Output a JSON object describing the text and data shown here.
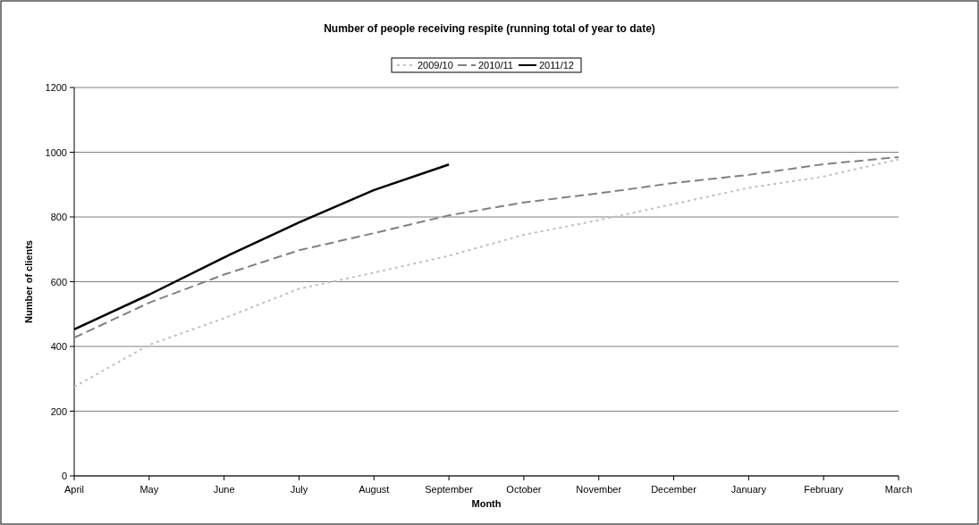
{
  "chart_data": {
    "type": "line",
    "title": "Number of people receiving respite (running total of year to date)",
    "xlabel": "Month",
    "ylabel": "Number of clients",
    "categories": [
      "April",
      "May",
      "June",
      "July",
      "August",
      "September",
      "October",
      "November",
      "December",
      "January",
      "February",
      "March"
    ],
    "ylim": [
      0,
      1200
    ],
    "yticks": [
      0,
      200,
      400,
      600,
      800,
      1000,
      1200
    ],
    "grid": "y",
    "legend": "top",
    "marker": "none",
    "series": [
      {
        "name": "2009/10",
        "color": "#c0c0c0",
        "line_style": "dotted",
        "values": [
          275,
          405,
          487,
          578,
          628,
          680,
          745,
          790,
          840,
          890,
          925,
          978
        ]
      },
      {
        "name": "2010/11",
        "color": "#808080",
        "line_style": "dashed",
        "values": [
          427,
          535,
          622,
          697,
          750,
          805,
          845,
          873,
          905,
          930,
          963,
          985
        ]
      },
      {
        "name": "2011/12",
        "color": "#000000",
        "line_style": "solid",
        "values": [
          453,
          560,
          675,
          783,
          883,
          962,
          null,
          null,
          null,
          null,
          null,
          null
        ]
      }
    ]
  }
}
